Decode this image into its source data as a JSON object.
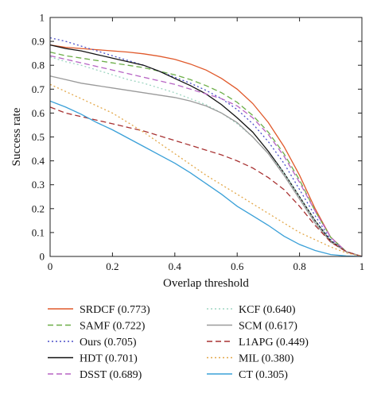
{
  "chart_data": {
    "type": "line",
    "title": "",
    "xlabel": "Overlap threshold",
    "ylabel": "Success rate",
    "xlim": [
      0,
      1
    ],
    "ylim": [
      0,
      1
    ],
    "xticks": [
      "0",
      "0.2",
      "0.4",
      "0.6",
      "0.8",
      "1"
    ],
    "yticks": [
      "0",
      "0.1",
      "0.2",
      "0.3",
      "0.4",
      "0.5",
      "0.6",
      "0.7",
      "0.8",
      "0.9",
      "1"
    ],
    "grid": false,
    "legend_position": "below",
    "series": [
      {
        "name": "SRDCF (0.773)",
        "color": "#e0592b",
        "style": "solid",
        "x": [
          0,
          0.05,
          0.1,
          0.15,
          0.2,
          0.25,
          0.3,
          0.35,
          0.4,
          0.45,
          0.5,
          0.55,
          0.6,
          0.65,
          0.7,
          0.75,
          0.8,
          0.85,
          0.9,
          0.95,
          1
        ],
        "y": [
          0.885,
          0.875,
          0.87,
          0.865,
          0.86,
          0.855,
          0.848,
          0.838,
          0.825,
          0.805,
          0.78,
          0.745,
          0.7,
          0.64,
          0.56,
          0.46,
          0.34,
          0.2,
          0.08,
          0.02,
          0
        ]
      },
      {
        "name": "SAMF (0.722)",
        "color": "#6cae48",
        "style": "dashed",
        "x": [
          0,
          0.05,
          0.1,
          0.15,
          0.2,
          0.25,
          0.3,
          0.35,
          0.4,
          0.45,
          0.5,
          0.55,
          0.6,
          0.65,
          0.7,
          0.75,
          0.8,
          0.85,
          0.9,
          0.95,
          1
        ],
        "y": [
          0.855,
          0.84,
          0.83,
          0.82,
          0.81,
          0.8,
          0.79,
          0.775,
          0.76,
          0.74,
          0.715,
          0.685,
          0.645,
          0.59,
          0.52,
          0.43,
          0.32,
          0.19,
          0.08,
          0.02,
          0
        ]
      },
      {
        "name": "Ours (0.705)",
        "color": "#4a4fc9",
        "style": "dotted",
        "x": [
          0,
          0.05,
          0.1,
          0.15,
          0.2,
          0.25,
          0.3,
          0.35,
          0.4,
          0.45,
          0.5,
          0.55,
          0.6,
          0.65,
          0.7,
          0.75,
          0.8,
          0.85,
          0.9,
          0.95,
          1
        ],
        "y": [
          0.915,
          0.9,
          0.88,
          0.86,
          0.84,
          0.82,
          0.8,
          0.775,
          0.75,
          0.725,
          0.695,
          0.66,
          0.615,
          0.555,
          0.48,
          0.39,
          0.28,
          0.17,
          0.07,
          0.02,
          0
        ]
      },
      {
        "name": "HDT (0.701)",
        "color": "#111111",
        "style": "solid",
        "x": [
          0,
          0.05,
          0.1,
          0.15,
          0.2,
          0.25,
          0.3,
          0.35,
          0.4,
          0.45,
          0.5,
          0.55,
          0.6,
          0.65,
          0.7,
          0.75,
          0.8,
          0.85,
          0.9,
          0.95,
          1
        ],
        "y": [
          0.885,
          0.87,
          0.86,
          0.845,
          0.83,
          0.815,
          0.8,
          0.775,
          0.745,
          0.715,
          0.68,
          0.635,
          0.58,
          0.52,
          0.44,
          0.35,
          0.25,
          0.15,
          0.065,
          0.02,
          0
        ]
      },
      {
        "name": "DSST (0.689)",
        "color": "#b764c4",
        "style": "dashed",
        "x": [
          0,
          0.05,
          0.1,
          0.15,
          0.2,
          0.25,
          0.3,
          0.35,
          0.4,
          0.45,
          0.5,
          0.55,
          0.6,
          0.65,
          0.7,
          0.75,
          0.8,
          0.85,
          0.9,
          0.95,
          1
        ],
        "y": [
          0.84,
          0.825,
          0.81,
          0.795,
          0.78,
          0.765,
          0.75,
          0.735,
          0.72,
          0.7,
          0.68,
          0.66,
          0.63,
          0.58,
          0.51,
          0.42,
          0.31,
          0.19,
          0.08,
          0.02,
          0
        ]
      },
      {
        "name": "KCF (0.640)",
        "color": "#9fd6c2",
        "style": "dotted",
        "x": [
          0,
          0.05,
          0.1,
          0.15,
          0.2,
          0.25,
          0.3,
          0.35,
          0.4,
          0.45,
          0.5,
          0.55,
          0.6,
          0.65,
          0.7,
          0.75,
          0.8,
          0.85,
          0.9,
          0.95,
          1
        ],
        "y": [
          0.835,
          0.815,
          0.8,
          0.78,
          0.76,
          0.74,
          0.725,
          0.705,
          0.685,
          0.66,
          0.635,
          0.6,
          0.555,
          0.5,
          0.43,
          0.35,
          0.25,
          0.15,
          0.065,
          0.02,
          0
        ]
      },
      {
        "name": "SCM (0.617)",
        "color": "#9a9a9a",
        "style": "solid",
        "x": [
          0,
          0.05,
          0.1,
          0.15,
          0.2,
          0.25,
          0.3,
          0.35,
          0.4,
          0.45,
          0.5,
          0.55,
          0.6,
          0.65,
          0.7,
          0.75,
          0.8,
          0.85,
          0.9,
          0.95,
          1
        ],
        "y": [
          0.755,
          0.74,
          0.725,
          0.715,
          0.705,
          0.695,
          0.685,
          0.675,
          0.665,
          0.65,
          0.63,
          0.6,
          0.56,
          0.5,
          0.43,
          0.34,
          0.24,
          0.14,
          0.06,
          0.02,
          0
        ]
      },
      {
        "name": "L1APG (0.449)",
        "color": "#a83232",
        "style": "dashed",
        "x": [
          0,
          0.05,
          0.1,
          0.15,
          0.2,
          0.25,
          0.3,
          0.35,
          0.4,
          0.45,
          0.5,
          0.55,
          0.6,
          0.65,
          0.7,
          0.75,
          0.8,
          0.85,
          0.9,
          0.95,
          1
        ],
        "y": [
          0.625,
          0.6,
          0.585,
          0.57,
          0.555,
          0.54,
          0.525,
          0.505,
          0.485,
          0.465,
          0.445,
          0.425,
          0.4,
          0.37,
          0.33,
          0.28,
          0.21,
          0.13,
          0.06,
          0.02,
          0
        ]
      },
      {
        "name": "MIL (0.380)",
        "color": "#e3a84a",
        "style": "dotted",
        "x": [
          0,
          0.05,
          0.1,
          0.15,
          0.2,
          0.25,
          0.3,
          0.35,
          0.4,
          0.45,
          0.5,
          0.55,
          0.6,
          0.65,
          0.7,
          0.75,
          0.8,
          0.85,
          0.9,
          0.95,
          1
        ],
        "y": [
          0.72,
          0.69,
          0.66,
          0.63,
          0.6,
          0.56,
          0.52,
          0.475,
          0.43,
          0.385,
          0.34,
          0.3,
          0.26,
          0.22,
          0.18,
          0.14,
          0.1,
          0.07,
          0.04,
          0.015,
          0
        ]
      },
      {
        "name": "CT (0.305)",
        "color": "#3aa0d8",
        "style": "solid",
        "x": [
          0,
          0.05,
          0.1,
          0.15,
          0.2,
          0.25,
          0.3,
          0.35,
          0.4,
          0.45,
          0.5,
          0.55,
          0.6,
          0.65,
          0.7,
          0.75,
          0.8,
          0.85,
          0.9,
          0.95,
          1
        ],
        "y": [
          0.65,
          0.625,
          0.595,
          0.56,
          0.53,
          0.495,
          0.46,
          0.425,
          0.39,
          0.35,
          0.305,
          0.26,
          0.21,
          0.17,
          0.13,
          0.085,
          0.05,
          0.025,
          0.008,
          0.002,
          0
        ]
      }
    ]
  }
}
